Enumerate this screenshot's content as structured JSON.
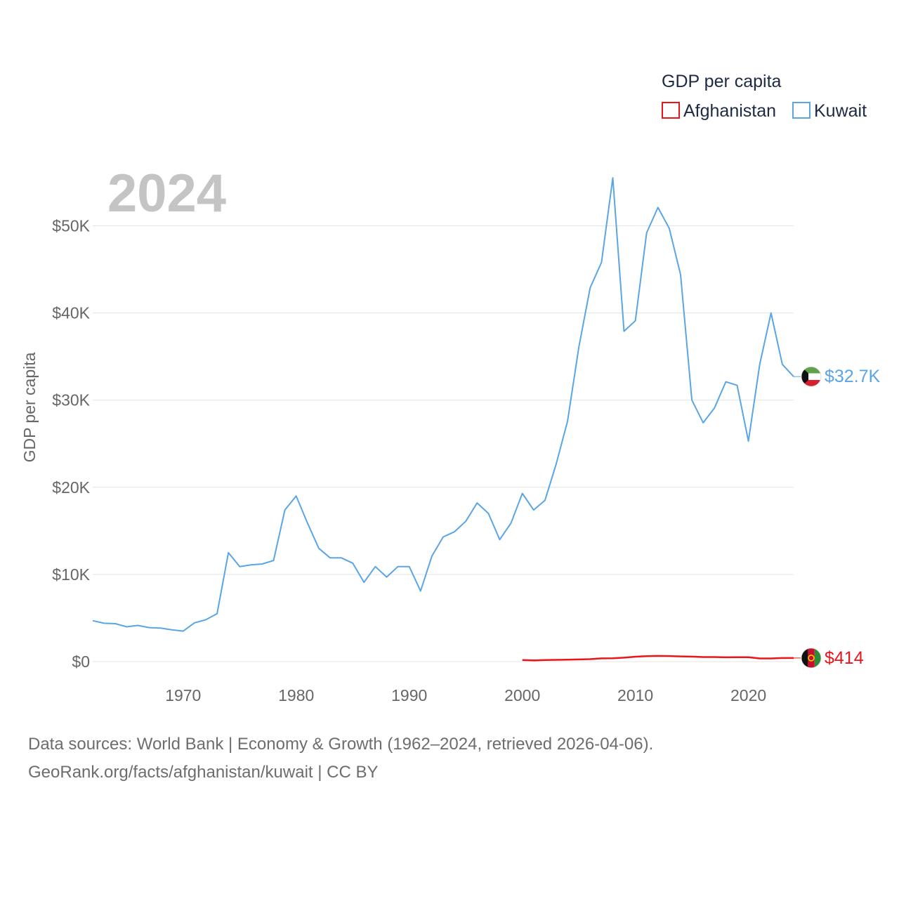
{
  "chart_data": {
    "type": "line",
    "legend_title": "GDP per capita",
    "ylabel": "GDP per capita",
    "year_label": "2024",
    "xlim": [
      1962,
      2024
    ],
    "ylim": [
      0,
      56000
    ],
    "x_ticks": [
      1970,
      1980,
      1990,
      2000,
      2010,
      2020
    ],
    "y_ticks": [
      {
        "value": 0,
        "label": "$0"
      },
      {
        "value": 10000,
        "label": "$10K"
      },
      {
        "value": 20000,
        "label": "$20K"
      },
      {
        "value": 30000,
        "label": "$30K"
      },
      {
        "value": 40000,
        "label": "$40K"
      },
      {
        "value": 50000,
        "label": "$50K"
      }
    ],
    "series": [
      {
        "name": "Afghanistan",
        "color": "#e8161b",
        "end_label": "$414",
        "flag_icon": "afghanistan-flag-icon",
        "x": [
          2000,
          2001,
          2002,
          2003,
          2004,
          2005,
          2006,
          2007,
          2008,
          2009,
          2010,
          2011,
          2012,
          2013,
          2014,
          2015,
          2016,
          2017,
          2018,
          2019,
          2020,
          2021,
          2022,
          2023,
          2024
        ],
        "values": [
          180,
          140,
          180,
          200,
          220,
          250,
          280,
          370,
          380,
          450,
          560,
          620,
          650,
          640,
          600,
          570,
          520,
          520,
          490,
          500,
          510,
          360,
          360,
          414,
          414
        ]
      },
      {
        "name": "Kuwait",
        "color": "#5aa5e6",
        "end_label": "$32.7K",
        "flag_icon": "kuwait-flag-icon",
        "x": [
          1962,
          1963,
          1964,
          1965,
          1966,
          1967,
          1968,
          1969,
          1970,
          1971,
          1972,
          1973,
          1974,
          1975,
          1976,
          1977,
          1978,
          1979,
          1980,
          1981,
          1982,
          1983,
          1984,
          1985,
          1986,
          1987,
          1988,
          1989,
          1990,
          1991,
          1992,
          1993,
          1994,
          1995,
          1996,
          1997,
          1998,
          1999,
          2000,
          2001,
          2002,
          2003,
          2004,
          2005,
          2006,
          2007,
          2008,
          2009,
          2010,
          2011,
          2012,
          2013,
          2014,
          2015,
          2016,
          2017,
          2018,
          2019,
          2020,
          2021,
          2022,
          2023,
          2024
        ],
        "values": [
          4700,
          4400,
          4350,
          4000,
          4150,
          3900,
          3850,
          3650,
          3500,
          4450,
          4800,
          5500,
          12500,
          10900,
          11100,
          11200,
          11600,
          17400,
          19000,
          15900,
          13000,
          11900,
          11900,
          11300,
          9100,
          10900,
          9700,
          10900,
          10900,
          8100,
          12100,
          14300,
          14900,
          16100,
          18200,
          17000,
          14000,
          15900,
          19300,
          17400,
          18500,
          22700,
          27600,
          36100,
          42900,
          45800,
          55500,
          37900,
          39100,
          49200,
          52100,
          49700,
          44400,
          30000,
          27400,
          29100,
          32100,
          31700,
          25300,
          34100,
          40000,
          34100,
          32700
        ]
      }
    ]
  },
  "footer": {
    "line1": "Data sources: World Bank | Economy & Growth (1962–2024, retrieved 2026-04-06).",
    "line2": "GeoRank.org/facts/afghanistan/kuwait | CC BY"
  }
}
